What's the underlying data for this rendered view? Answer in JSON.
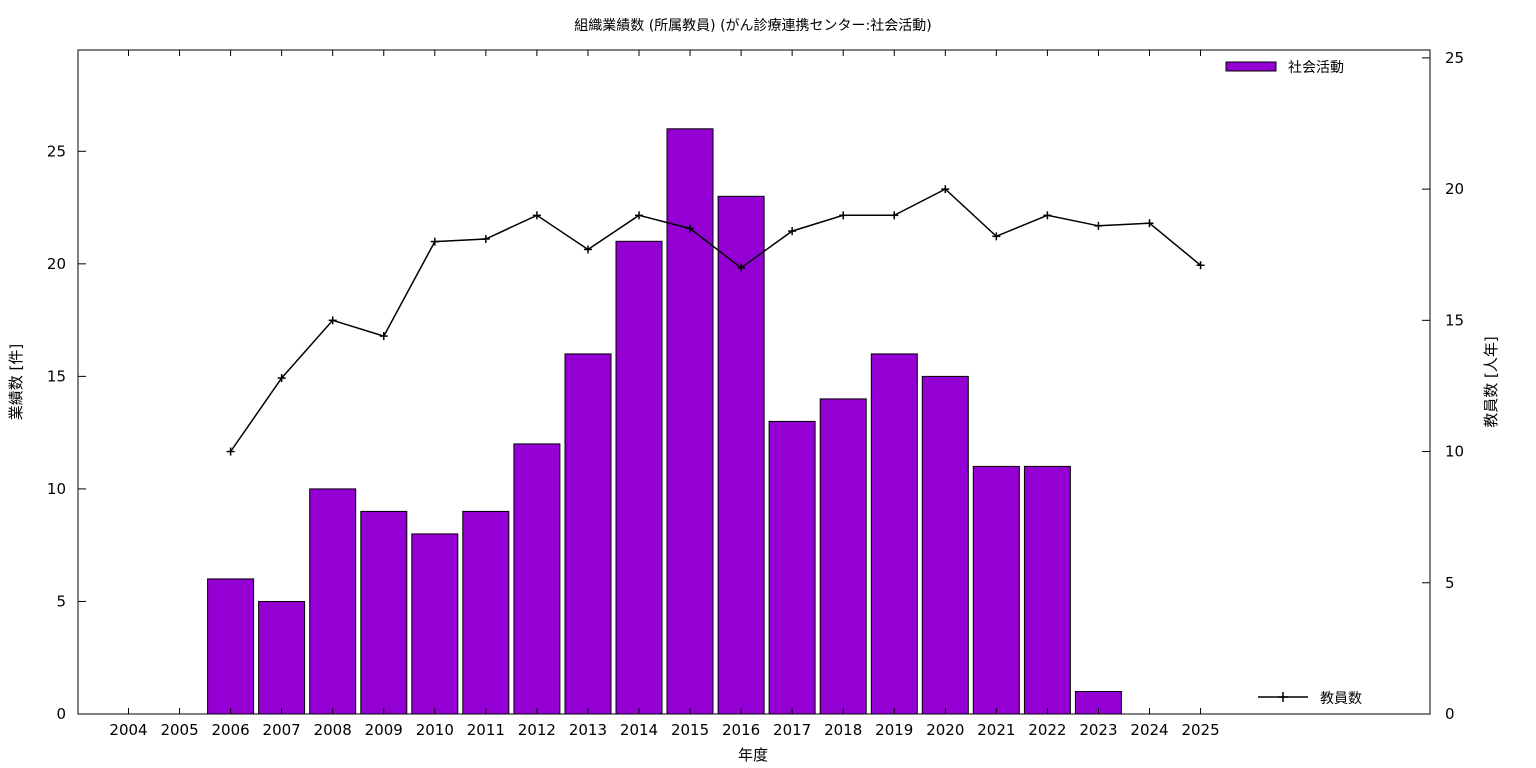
{
  "chart_data": {
    "type": "bar",
    "title": "組織業績数 (所属教員) (がん診療連携センター:社会活動)",
    "xlabel": "年度",
    "ylabel": "業績数 [件]",
    "y2label": "教員数 [人年]",
    "categories": [
      "2004",
      "2005",
      "2006",
      "2007",
      "2008",
      "2009",
      "2010",
      "2011",
      "2012",
      "2013",
      "2014",
      "2015",
      "2016",
      "2017",
      "2018",
      "2019",
      "2020",
      "2021",
      "2022",
      "2023",
      "2024",
      "2025"
    ],
    "ylim": [
      0,
      29.5
    ],
    "y2lim": [
      0,
      25.3
    ],
    "yticks": [
      0,
      5,
      10,
      15,
      20,
      25
    ],
    "y2ticks": [
      0,
      5,
      10,
      15,
      20,
      25
    ],
    "grid": false,
    "series": [
      {
        "name": "社会活動",
        "type": "bar",
        "axis": "left",
        "color": "#9400d3",
        "values": [
          null,
          null,
          6,
          5,
          10,
          9,
          8,
          9,
          12,
          16,
          21,
          26,
          23,
          13,
          14,
          16,
          15,
          11,
          11,
          1,
          null,
          null
        ]
      },
      {
        "name": "教員数",
        "type": "line",
        "axis": "right",
        "color": "#000000",
        "marker": "plus",
        "values": [
          null,
          null,
          10,
          12.8,
          15,
          14.4,
          18,
          18.1,
          19,
          17.7,
          19,
          18.5,
          17,
          18.4,
          19,
          19,
          20,
          18.2,
          19,
          18.6,
          18.7,
          17.1
        ]
      }
    ],
    "legend": {
      "bar_position": "top-right",
      "line_position": "bottom-right"
    }
  }
}
